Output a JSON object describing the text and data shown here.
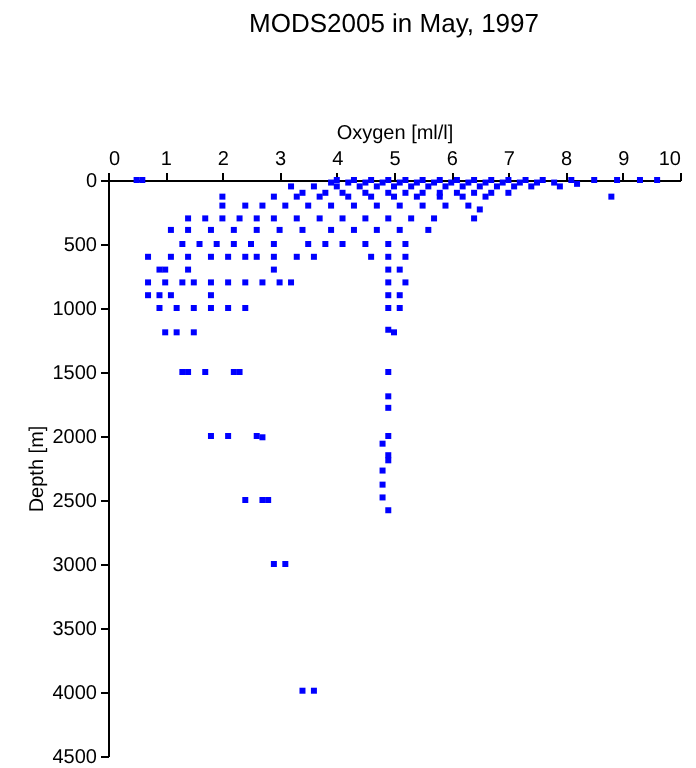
{
  "chart_data": {
    "type": "scatter",
    "title": "MODS2005 in May, 1997",
    "xlabel": "Oxygen [ml/l]",
    "ylabel": "Depth [m]",
    "xlim": [
      0,
      10
    ],
    "xticks": [
      0,
      1,
      2,
      3,
      4,
      5,
      6,
      7,
      8,
      9,
      10
    ],
    "ylim": [
      4500,
      0
    ],
    "yticks": [
      0,
      500,
      1000,
      1500,
      2000,
      2500,
      3000,
      3500,
      4000,
      4500
    ],
    "grid": false,
    "legend": false,
    "marker": "square",
    "series": [
      {
        "color": "#0000ff",
        "x": [
          0.5,
          0.6,
          4.0,
          4.3,
          4.6,
          4.9,
          5.2,
          5.5,
          5.8,
          6.1,
          6.4,
          6.7,
          7.0,
          7.3,
          7.6,
          8.1,
          8.5,
          8.9,
          9.3,
          9.6,
          3.9,
          4.2,
          4.5,
          4.8,
          5.1,
          5.4,
          5.7,
          6.0,
          6.3,
          6.6,
          6.9,
          7.2,
          7.5,
          7.8,
          3.2,
          3.6,
          4.0,
          4.4,
          4.7,
          5.0,
          5.3,
          5.6,
          5.9,
          6.2,
          6.5,
          6.8,
          7.1,
          7.4,
          7.9,
          8.2,
          3.4,
          3.8,
          4.1,
          4.5,
          4.9,
          5.2,
          5.5,
          5.8,
          6.1,
          6.4,
          6.7,
          7.0,
          2.0,
          2.9,
          3.3,
          3.7,
          4.2,
          4.6,
          5.0,
          5.4,
          5.8,
          6.2,
          6.6,
          8.8,
          2.0,
          2.4,
          2.7,
          3.1,
          3.5,
          3.9,
          4.3,
          4.7,
          5.1,
          5.5,
          5.9,
          6.3,
          6.5,
          1.4,
          1.7,
          2.0,
          2.3,
          2.6,
          2.9,
          3.3,
          3.7,
          4.1,
          4.5,
          4.9,
          5.3,
          5.7,
          6.4,
          1.1,
          1.4,
          1.8,
          2.2,
          2.6,
          3.0,
          3.4,
          3.9,
          4.3,
          4.7,
          5.1,
          5.6,
          1.3,
          1.6,
          1.9,
          2.2,
          2.5,
          2.9,
          3.5,
          3.8,
          4.1,
          4.5,
          4.9,
          5.2,
          0.7,
          1.1,
          1.4,
          1.8,
          2.1,
          2.4,
          2.6,
          2.9,
          3.3,
          3.6,
          4.6,
          4.9,
          5.2,
          0.9,
          1.0,
          1.4,
          2.9,
          4.9,
          5.1,
          0.7,
          1.0,
          1.3,
          1.5,
          1.8,
          2.1,
          2.4,
          2.7,
          3.0,
          3.2,
          4.9,
          5.2,
          0.7,
          0.9,
          1.1,
          1.8,
          4.9,
          5.1,
          0.9,
          1.2,
          1.5,
          1.8,
          2.1,
          2.4,
          4.9,
          5.1,
          1.0,
          1.2,
          1.5,
          4.9,
          5.0,
          1.3,
          1.4,
          1.7,
          2.2,
          2.3,
          4.9,
          4.9,
          4.9,
          1.8,
          2.1,
          2.6,
          2.7,
          4.9,
          4.8,
          4.9,
          4.9,
          4.8,
          4.8,
          4.8,
          4.9,
          2.4,
          2.7,
          2.8,
          2.9,
          3.1,
          3.4,
          3.6
        ],
        "values": [
          0,
          0,
          0,
          0,
          0,
          0,
          0,
          0,
          0,
          0,
          0,
          0,
          0,
          0,
          0,
          0,
          0,
          0,
          0,
          0,
          20,
          20,
          20,
          20,
          20,
          20,
          20,
          20,
          20,
          20,
          20,
          20,
          20,
          20,
          50,
          50,
          50,
          50,
          50,
          50,
          50,
          50,
          50,
          50,
          50,
          50,
          50,
          50,
          50,
          30,
          100,
          100,
          100,
          100,
          100,
          100,
          100,
          100,
          100,
          100,
          100,
          100,
          130,
          130,
          130,
          130,
          130,
          130,
          130,
          130,
          130,
          130,
          130,
          130,
          200,
          200,
          200,
          200,
          200,
          200,
          200,
          200,
          200,
          200,
          200,
          200,
          230,
          300,
          300,
          300,
          300,
          300,
          300,
          300,
          300,
          300,
          300,
          300,
          300,
          300,
          300,
          390,
          390,
          390,
          390,
          390,
          390,
          390,
          390,
          390,
          390,
          390,
          390,
          500,
          500,
          500,
          500,
          500,
          500,
          500,
          500,
          500,
          500,
          500,
          500,
          600,
          600,
          600,
          600,
          600,
          600,
          600,
          600,
          600,
          600,
          600,
          600,
          600,
          700,
          700,
          700,
          700,
          700,
          700,
          800,
          800,
          800,
          800,
          800,
          800,
          800,
          800,
          800,
          800,
          800,
          800,
          900,
          900,
          900,
          900,
          900,
          900,
          1000,
          1000,
          1000,
          1000,
          1000,
          1000,
          1000,
          1000,
          1190,
          1190,
          1190,
          1170,
          1190,
          1500,
          1500,
          1500,
          1500,
          1500,
          1500,
          1690,
          1780,
          2000,
          2000,
          2000,
          2010,
          2000,
          2060,
          2150,
          2190,
          2270,
          2380,
          2480,
          2580,
          2500,
          2500,
          2500,
          3000,
          3000,
          3990,
          3990
        ]
      }
    ]
  }
}
